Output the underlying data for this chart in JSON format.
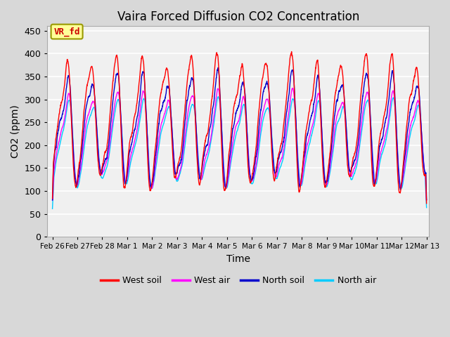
{
  "title": "Vaira Forced Diffusion CO2 Concentration",
  "xlabel": "Time",
  "ylabel": "CO2 (ppm)",
  "ylim": [
    0,
    460
  ],
  "yticks": [
    0,
    50,
    100,
    150,
    200,
    250,
    300,
    350,
    400,
    450
  ],
  "legend_labels": [
    "West soil",
    "West air",
    "North soil",
    "North air"
  ],
  "legend_colors": [
    "#ff0000",
    "#ff00ff",
    "#0000cc",
    "#00ccff"
  ],
  "fig_bg_color": "#d8d8d8",
  "plot_bg_color": "#f0f0f0",
  "grid_color": "#ffffff",
  "annotation_text": "VR_fd",
  "annotation_bg": "#ffff99",
  "annotation_border": "#999900",
  "n_points": 3000,
  "x_start_day": 57,
  "x_end_day": 72,
  "xtick_labels": [
    "Feb 26",
    "Feb 27",
    "Feb 28",
    "Mar 1",
    "Mar 2",
    "Mar 3",
    "Mar 4",
    "Mar 5",
    "Mar 6",
    "Mar 7",
    "Mar 8",
    "Mar 9",
    "Mar 10",
    "Mar 11",
    "Mar 12",
    "Mar 13"
  ],
  "xtick_positions": [
    57,
    58,
    59,
    60,
    61,
    62,
    63,
    64,
    65,
    66,
    67,
    68,
    69,
    70,
    71,
    72
  ]
}
